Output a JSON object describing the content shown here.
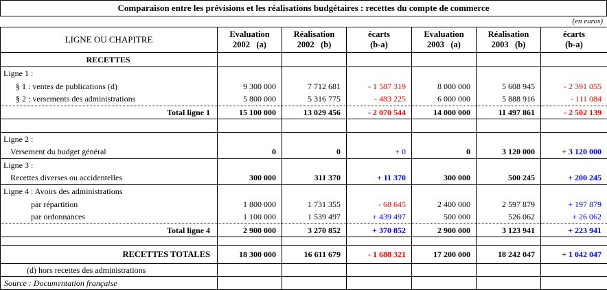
{
  "meta": {
    "title": "Comparaison entre les prévisions et les réalisations budgétaires : recettes du compte de commerce",
    "currency_note": "(en euros)"
  },
  "header": {
    "label_col": "LIGNE OU CHAPITRE",
    "cols": [
      {
        "line1": "Evaluation",
        "line2": "2002   (a)"
      },
      {
        "line1": "Réalisation",
        "line2": "2002   (b)"
      },
      {
        "line1": "écarts",
        "line2": "(b-a)"
      },
      {
        "line1": "Evaluation",
        "line2": "2003   (a)"
      },
      {
        "line1": "Réalisation",
        "line2": "2003   (b)"
      },
      {
        "line1": "écarts",
        "line2": "(b-a)"
      }
    ]
  },
  "colors": {
    "negative": "#ff0000",
    "positive": "#0000ff"
  },
  "rows": [
    {
      "label": "RECETTES",
      "ls": "section",
      "rc": "hb recettes",
      "cells": []
    },
    {
      "label": "Ligne 1 :",
      "ls": "plain",
      "rc": "",
      "cells": []
    },
    {
      "label": "§ 1 : ventes de publications (d)",
      "ls": "sub",
      "rc": "",
      "cells": [
        {
          "t": "9 300 000",
          "s": ""
        },
        {
          "t": "7 712 681",
          "s": ""
        },
        {
          "t": "- 1 587 319",
          "s": "neg"
        },
        {
          "t": "8 000 000",
          "s": ""
        },
        {
          "t": "5 608 945",
          "s": ""
        },
        {
          "t": "- 2 391 055",
          "s": "neg"
        }
      ]
    },
    {
      "label": "§ 2 : versements des administrations",
      "ls": "sub",
      "rc": "",
      "cells": [
        {
          "t": "5 800 000",
          "s": ""
        },
        {
          "t": "5 316 775",
          "s": ""
        },
        {
          "t": "- 483 225",
          "s": "neg"
        },
        {
          "t": "6 000 000",
          "s": ""
        },
        {
          "t": "5 888 916",
          "s": ""
        },
        {
          "t": "- 111 084",
          "s": "neg"
        }
      ]
    },
    {
      "label": "Total ligne 1",
      "ls": "total",
      "rc": "dt hb",
      "cells": [
        {
          "t": "15 100 000",
          "s": "b"
        },
        {
          "t": "13 029 456",
          "s": "b"
        },
        {
          "t": "- 2 070 544",
          "s": "negb"
        },
        {
          "t": "14 000 000",
          "s": "b"
        },
        {
          "t": "11 497 861",
          "s": "b"
        },
        {
          "t": "- 2 502 139",
          "s": "negb"
        }
      ]
    },
    {
      "label": "",
      "ls": "plain",
      "rc": "spacer hb",
      "cells": []
    },
    {
      "label": "Ligne 2 :",
      "ls": "plain",
      "rc": "",
      "cells": []
    },
    {
      "label": "Versement du budget général",
      "ls": "item",
      "rc": "hb",
      "cells": [
        {
          "t": "0",
          "s": "b"
        },
        {
          "t": "0",
          "s": "b"
        },
        {
          "t": "+ 0",
          "s": "pos"
        },
        {
          "t": "0",
          "s": "b"
        },
        {
          "t": "3 120 000",
          "s": "b"
        },
        {
          "t": "+ 3 120 000",
          "s": "posb"
        }
      ]
    },
    {
      "label": "Ligne 3 :",
      "ls": "plain",
      "rc": "",
      "cells": []
    },
    {
      "label": "Recettes diverses ou accidentelles",
      "ls": "item",
      "rc": "hb",
      "cells": [
        {
          "t": "300 000",
          "s": "b"
        },
        {
          "t": "311 370",
          "s": "b"
        },
        {
          "t": "+ 11 370",
          "s": "posb"
        },
        {
          "t": "300 000",
          "s": "b"
        },
        {
          "t": "500 245",
          "s": "b"
        },
        {
          "t": "+ 200 245",
          "s": "posb"
        }
      ]
    },
    {
      "label": "Ligne 4 :  Avoirs des administrations",
      "ls": "plain",
      "rc": "",
      "cells": []
    },
    {
      "label": "par répartition",
      "ls": "sub2",
      "rc": "",
      "cells": [
        {
          "t": "1 800 000",
          "s": ""
        },
        {
          "t": "1 731 355",
          "s": ""
        },
        {
          "t": "- 68 645",
          "s": "neg"
        },
        {
          "t": "2 400 000",
          "s": ""
        },
        {
          "t": "2 597 879",
          "s": ""
        },
        {
          "t": "+ 197 879",
          "s": "pos"
        }
      ]
    },
    {
      "label": "par ordonnances",
      "ls": "sub2",
      "rc": "",
      "cells": [
        {
          "t": "1 100 000",
          "s": ""
        },
        {
          "t": "1 539 497",
          "s": ""
        },
        {
          "t": "+ 439 497",
          "s": "pos"
        },
        {
          "t": "500 000",
          "s": ""
        },
        {
          "t": "526 062",
          "s": ""
        },
        {
          "t": "+ 26 062",
          "s": "pos"
        }
      ]
    },
    {
      "label": "Total ligne 4",
      "ls": "total",
      "rc": "dt hb",
      "cells": [
        {
          "t": "2 900 000",
          "s": "b"
        },
        {
          "t": "3 270 852",
          "s": "b"
        },
        {
          "t": "+ 370 852",
          "s": "posb"
        },
        {
          "t": "2 900 000",
          "s": "b"
        },
        {
          "t": "3 123 941",
          "s": "b"
        },
        {
          "t": "+ 223 941",
          "s": "posb"
        }
      ]
    },
    {
      "label": "",
      "ls": "plain",
      "rc": "spacer2 hb",
      "cells": []
    },
    {
      "label": "RECETTES TOTALES",
      "ls": "grand",
      "rc": "hb tall",
      "cells": [
        {
          "t": "18 300 000",
          "s": "b"
        },
        {
          "t": "16 611 679",
          "s": "b"
        },
        {
          "t": "- 1 688 321",
          "s": "negb"
        },
        {
          "t": "17 200 000",
          "s": "b"
        },
        {
          "t": "18 242 047",
          "s": "b"
        },
        {
          "t": "+ 1 042 047",
          "s": "posb"
        }
      ]
    },
    {
      "label": "(d) hors recettes des administrations",
      "ls": "footnote",
      "rc": "hb",
      "cells": []
    },
    {
      "label": "Source : Documentation française",
      "ls": "source",
      "rc": "",
      "cells": []
    }
  ]
}
